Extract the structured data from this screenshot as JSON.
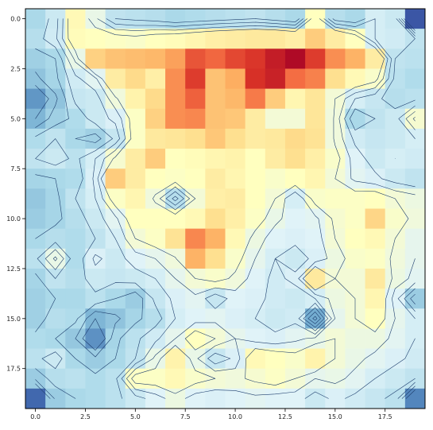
{
  "chart_data": {
    "type": "heatmap",
    "title": "",
    "xlabel": "",
    "ylabel": "",
    "x_ticks": [
      "0.0",
      "2.5",
      "5.0",
      "7.5",
      "10.0",
      "12.5",
      "15.0",
      "17.5"
    ],
    "y_ticks": [
      "0.0",
      "2.5",
      "5.0",
      "7.5",
      "10.0",
      "12.5",
      "15.0",
      "17.5"
    ],
    "xlim": [
      -0.5,
      19.5
    ],
    "ylim": [
      19.5,
      -0.5
    ],
    "colormap": "RdYlBu_r",
    "vmin": 0,
    "vmax": 10,
    "contour_color": "#1f3f6e",
    "contour_levels": [
      2.2,
      2.6,
      3.0,
      3.4,
      3.8,
      4.2,
      4.6
    ],
    "grid": false,
    "z": [
      [
        3.0,
        3.6,
        5.2,
        4.3,
        3.4,
        3.3,
        3.2,
        3.0,
        3.1,
        3.2,
        3.3,
        3.4,
        3.2,
        3.0,
        5.0,
        3.2,
        3.0,
        3.8,
        3.6,
        0.5
      ],
      [
        3.2,
        3.7,
        5.1,
        5.0,
        4.9,
        4.8,
        5.0,
        5.1,
        5.3,
        5.5,
        5.6,
        5.7,
        5.7,
        5.5,
        6.4,
        5.6,
        5.0,
        3.8,
        3.7,
        3.4
      ],
      [
        2.8,
        3.0,
        4.3,
        6.3,
        6.6,
        6.7,
        6.8,
        7.2,
        8.4,
        8.1,
        8.6,
        8.9,
        9.4,
        9.8,
        8.8,
        7.5,
        6.9,
        5.6,
        3.4,
        3.3
      ],
      [
        2.5,
        2.9,
        3.7,
        4.1,
        5.6,
        6.1,
        5.5,
        7.5,
        8.8,
        6.6,
        7.0,
        9.0,
        9.3,
        8.0,
        7.7,
        6.0,
        5.2,
        4.8,
        3.3,
        3.1
      ],
      [
        1.6,
        2.5,
        3.5,
        3.6,
        4.5,
        5.4,
        6.1,
        7.5,
        8.2,
        6.6,
        6.8,
        7.8,
        6.4,
        5.3,
        5.8,
        4.6,
        3.8,
        3.5,
        3.2,
        3.3
      ],
      [
        2.2,
        2.8,
        3.1,
        3.6,
        3.9,
        4.9,
        6.3,
        7.5,
        7.6,
        6.6,
        6.5,
        5.6,
        4.6,
        4.6,
        5.8,
        4.5,
        3.0,
        3.4,
        3.6,
        4.7
      ],
      [
        3.1,
        3.4,
        3.0,
        2.8,
        3.5,
        4.9,
        5.7,
        5.8,
        6.0,
        6.5,
        6.0,
        5.6,
        5.7,
        6.1,
        5.9,
        4.5,
        3.7,
        3.5,
        3.6,
        3.8
      ],
      [
        3.4,
        3.6,
        3.3,
        3.8,
        4.7,
        5.6,
        6.4,
        5.0,
        5.1,
        5.3,
        5.4,
        5.0,
        5.6,
        6.0,
        5.5,
        4.8,
        4.0,
        3.6,
        3.8,
        3.7
      ],
      [
        2.9,
        3.0,
        3.1,
        3.9,
        6.4,
        5.6,
        5.0,
        4.9,
        5.0,
        5.6,
        5.3,
        5.0,
        4.8,
        5.0,
        5.3,
        4.6,
        4.1,
        3.9,
        3.6,
        3.4
      ],
      [
        2.6,
        2.9,
        3.4,
        3.8,
        4.9,
        5.3,
        4.5,
        3.2,
        4.6,
        5.5,
        5.6,
        5.0,
        4.6,
        3.8,
        4.8,
        4.9,
        4.9,
        5.0,
        4.6,
        4.4
      ],
      [
        2.7,
        2.9,
        3.2,
        3.6,
        4.1,
        5.0,
        5.0,
        5.0,
        5.2,
        6.0,
        5.5,
        4.9,
        4.3,
        4.0,
        4.1,
        4.7,
        4.9,
        6.2,
        4.8,
        4.5
      ],
      [
        3.0,
        3.2,
        3.1,
        3.4,
        3.8,
        4.6,
        4.9,
        5.9,
        7.6,
        6.9,
        5.2,
        4.4,
        4.0,
        3.9,
        4.0,
        4.6,
        5.0,
        5.2,
        4.6,
        4.2
      ],
      [
        3.3,
        4.3,
        3.1,
        3.9,
        3.6,
        4.0,
        4.2,
        4.5,
        6.9,
        6.0,
        4.8,
        4.2,
        3.8,
        3.6,
        3.9,
        4.4,
        4.8,
        4.9,
        4.5,
        4.2
      ],
      [
        2.9,
        3.4,
        3.2,
        3.6,
        3.5,
        3.6,
        3.8,
        4.2,
        4.6,
        4.8,
        4.5,
        4.0,
        3.7,
        3.9,
        5.7,
        4.6,
        4.6,
        5.7,
        4.4,
        4.1
      ],
      [
        2.8,
        3.0,
        3.0,
        3.3,
        3.0,
        2.7,
        3.5,
        3.9,
        4.1,
        3.5,
        4.0,
        3.9,
        3.7,
        3.6,
        3.8,
        4.4,
        4.6,
        5.3,
        4.0,
        2.7
      ],
      [
        2.8,
        3.2,
        3.1,
        2.2,
        2.5,
        2.9,
        3.2,
        3.8,
        4.0,
        4.1,
        3.9,
        3.8,
        3.6,
        3.7,
        2.0,
        4.2,
        4.6,
        5.0,
        4.2,
        3.8
      ],
      [
        3.1,
        3.0,
        2.6,
        1.5,
        2.9,
        3.3,
        3.7,
        4.2,
        5.0,
        4.6,
        4.2,
        4.0,
        3.9,
        4.1,
        4.3,
        4.6,
        4.4,
        4.4,
        4.1,
        3.8
      ],
      [
        3.3,
        3.6,
        3.0,
        2.7,
        3.0,
        3.4,
        4.3,
        5.4,
        4.3,
        3.5,
        3.9,
        5.2,
        5.0,
        4.8,
        5.4,
        4.6,
        4.3,
        4.1,
        3.9,
        3.7
      ],
      [
        2.7,
        3.2,
        3.3,
        3.1,
        3.3,
        4.9,
        4.9,
        5.2,
        4.8,
        4.6,
        4.5,
        4.7,
        4.9,
        4.6,
        4.2,
        4.3,
        4.1,
        3.8,
        3.6,
        3.4
      ],
      [
        0.8,
        2.7,
        3.0,
        3.1,
        3.3,
        3.6,
        4.0,
        4.4,
        4.0,
        3.9,
        4.0,
        4.1,
        4.0,
        4.0,
        3.6,
        3.9,
        3.7,
        3.5,
        3.3,
        1.3
      ]
    ]
  }
}
